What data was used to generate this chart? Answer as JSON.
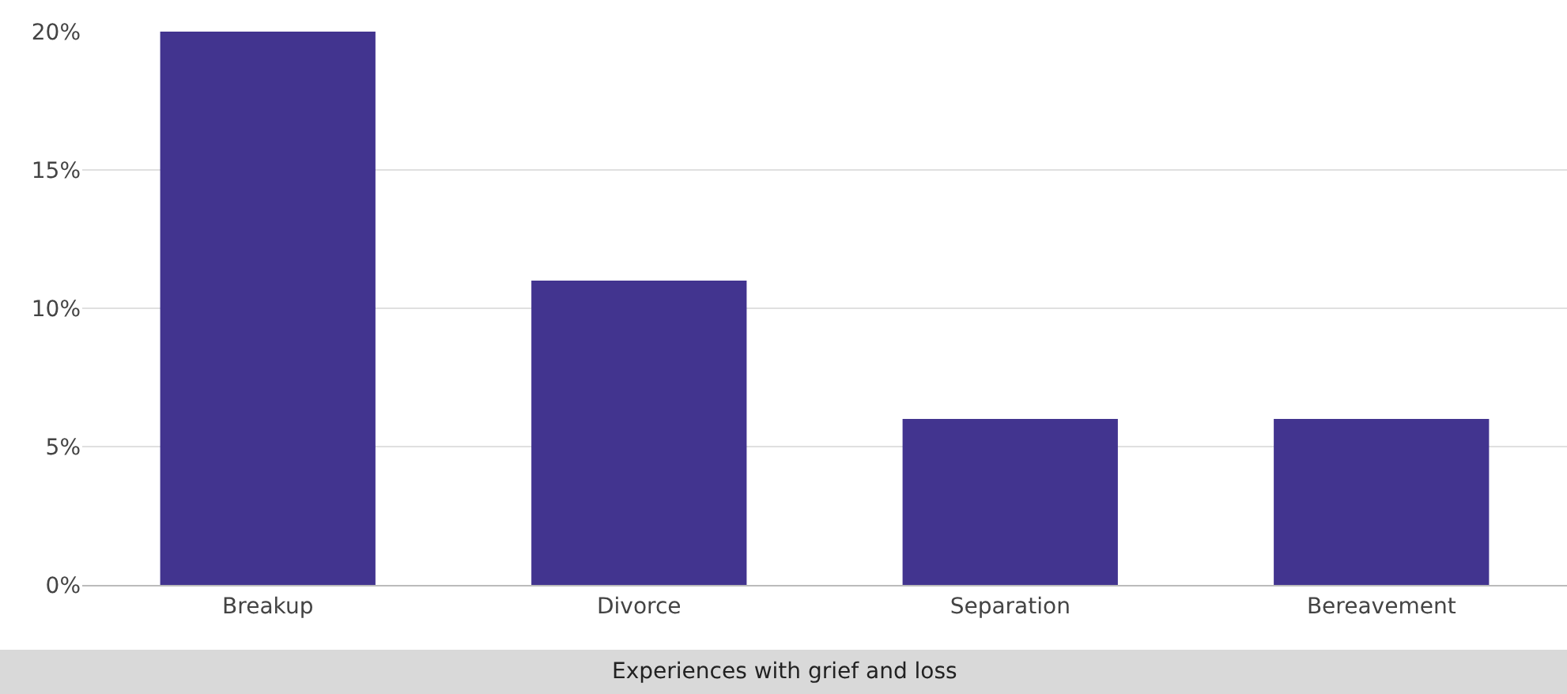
{
  "chart_data": {
    "type": "bar",
    "xlabel": "Experiences with grief and loss",
    "categories": [
      "Breakup",
      "Divorce",
      "Separation",
      "Bereavement"
    ],
    "values": [
      20,
      11,
      6,
      6
    ],
    "color": "#42348f",
    "ylim": [
      0,
      20
    ],
    "yticks": [
      {
        "value": 0,
        "label": "0%"
      },
      {
        "value": 5,
        "label": "5%"
      },
      {
        "value": 10,
        "label": "10%"
      },
      {
        "value": 15,
        "label": "15%"
      },
      {
        "value": 20,
        "label": "20%"
      }
    ],
    "grid": "y"
  }
}
